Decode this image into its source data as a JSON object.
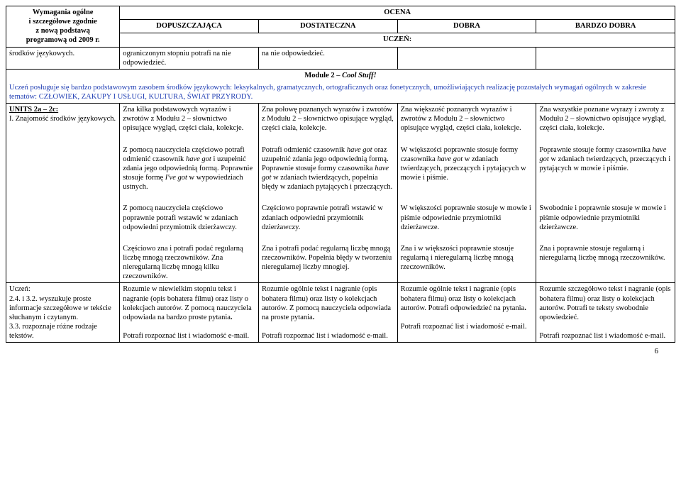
{
  "colors": {
    "text": "#000000",
    "intro_text": "#1f3db3",
    "border": "#000000",
    "background": "#ffffff"
  },
  "fonts": {
    "family": "Times New Roman, serif",
    "base_size_pt": 10.5,
    "bold_weight": 700
  },
  "page_number": "6",
  "header": {
    "requirements_line1": "Wymagania ogólne",
    "requirements_line2": "i szczegółowe zgodnie",
    "requirements_line3": "z nową podstawą",
    "requirements_line4": "programową od 2009 r.",
    "ocena": "OCENA",
    "grades": {
      "dopuszczajaca": "DOPUSZCZAJĄCA",
      "dostateczna": "DOSTATECZNA",
      "dobra": "DOBRA",
      "bardzo_dobra": "BARDZO DOBRA"
    },
    "uczen": "UCZEŃ:"
  },
  "row_top": {
    "col1": "środków językowych.",
    "col2": "ograniczonym stopniu potrafi na nie odpowiedzieć.",
    "col3": "na nie odpowiedzieć.",
    "col4": "",
    "col5": ""
  },
  "module_title": {
    "prefix": "Module 2 – ",
    "italic": "Cool Stuff!"
  },
  "intro": "Uczeń posługuje się bardzo podstawowym zasobem środków językowych: leksykalnych, gramatycznych, ortograficznych oraz fonetycznych, umożliwiających realizację pozostałych wymagań ogólnych w zakresie tematów: CZŁOWIEK, ZAKUPY I USŁUGI, KULTURA, ŚWIAT PRZYRODY.",
  "r1": {
    "c1_l1": "UNITS 2a – 2c:",
    "c1_l2": "I. Znajomość środków językowych.",
    "c2": "Zna kilka podstawowych wyrazów i zwrotów z Modułu 2 – słownictwo opisujące wygląd, części ciała, kolekcje.",
    "c3": "Zna połowę poznanych wyrazów i zwrotów z Modułu 2 – słownictwo opisujące wygląd, części ciała, kolekcje.",
    "c4": "Zna większość poznanych wyrazów i zwrotów z Modułu 2 – słownictwo opisujące wygląd, części ciała, kolekcje.",
    "c5": "Zna wszystkie poznane wyrazy i zwroty z Modułu 2 – słownictwo opisujące wygląd, części ciała, kolekcje."
  },
  "r2": {
    "c2a": "Z pomocą nauczyciela częściowo potrafi odmienić czasownik ",
    "c2i": "have got",
    "c2b": " i uzupełnić zdania jego odpowiednią formą. Poprawnie stosuje formę ",
    "c2i2": "I've got",
    "c2c": " w wypowiedziach ustnych.",
    "c3a": "Potrafi odmienić czasownik ",
    "c3i": "have got",
    "c3b": " oraz uzupełnić zdania jego odpowiednią formą. Poprawnie stosuje formy czasownika ",
    "c3i2": "have got",
    "c3c": " w zdaniach twierdzących, popełnia błędy w zdaniach pytających i przeczących.",
    "c4a": "W większości poprawnie stosuje formy czasownika ",
    "c4i": "have got",
    "c4b": " w zdaniach twierdzących, przeczących i pytających w mowie i piśmie.",
    "c5a": "Poprawnie stosuje formy czasownika ",
    "c5i": "have got",
    "c5b": " w zdaniach twierdzących, przeczących i pytających w mowie i piśmie."
  },
  "r3": {
    "c2": "Z pomocą nauczyciela częściowo poprawnie potrafi wstawić w zdaniach odpowiedni przymiotnik dzierżawczy.",
    "c3": "Częściowo poprawnie potrafi wstawić w zdaniach odpowiedni przymiotnik dzierżawczy.",
    "c4": "W większości poprawnie stosuje w mowie i piśmie odpowiednie przymiotniki dzierżawcze.",
    "c5": "Swobodnie i poprawnie stosuje w mowie i piśmie odpowiednie przymiotniki dzierżawcze."
  },
  "r4": {
    "c2": "Częściowo zna i potrafi podać regularną liczbę mnogą rzeczowników. Zna nieregularną liczbę mnogą kilku rzeczowników.",
    "c3": "Zna i potrafi podać regularną liczbę mnogą rzeczowników. Popełnia błędy w tworzeniu nieregularnej liczby mnogiej.",
    "c4": "Zna i w większości poprawnie stosuje regularną i nieregularną liczbę mnogą rzeczowników.",
    "c5": "Zna i poprawnie stosuje regularną i nieregularną liczbę mnogą rzeczowników."
  },
  "r5": {
    "c1_l1": "Uczeń:",
    "c1_l2": "2.4. i 3.2. wyszukuje proste informacje szczegółowe w tekście słuchanym i czytanym.",
    "c1_l3": "3.3. rozpoznaje różne rodzaje tekstów.",
    "c2a": "Rozumie w niewielkim stopniu tekst i nagranie (opis bohatera filmu) oraz listy o kolekcjach autorów. Z pomocą nauczyciela odpowiada na bardzo proste pytania",
    "c3a": "Rozumie ogólnie tekst i nagranie (opis bohatera filmu) oraz listy o kolekcjach autorów. Z pomocą nauczyciela odpowiada na proste pytania",
    "c4a": "Rozumie ogólnie tekst i nagranie (opis bohatera filmu) oraz listy o kolekcjach autorów. Potrafi odpowiedzieć na pytania",
    "c5a": "Rozumie szczegółowo tekst i nagranie (opis bohatera filmu) oraz listy o kolekcjach autorów. Potrafi te teksty swobodnie opowiedzieć.",
    "dot": ".",
    "c2b": "Potrafi rozpoznać list i wiadomość e-mail.",
    "c3b": "Potrafi rozpoznać list i wiadomość e-mail.",
    "c4b": "Potrafi rozpoznać list i wiadomość e-mail.",
    "c5b": "Potrafi rozpoznać list i wiadomość e-mail."
  }
}
